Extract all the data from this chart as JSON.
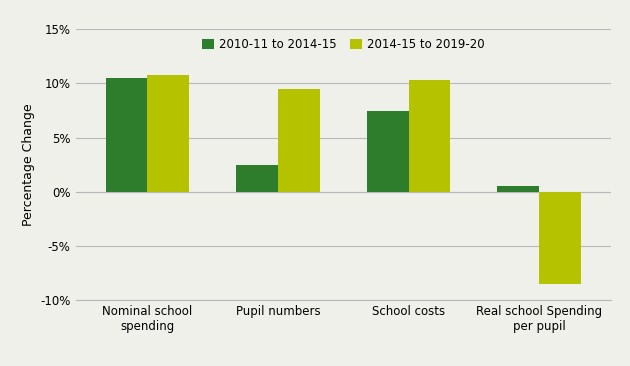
{
  "categories": [
    "Nominal school\nspending",
    "Pupil numbers",
    "School costs",
    "Real school Spending\nper pupil"
  ],
  "series": [
    {
      "label": "2010-11 to 2014-15",
      "values": [
        10.5,
        2.5,
        7.5,
        0.5
      ],
      "color": "#2d7d2d"
    },
    {
      "label": "2014-15 to 2019-20",
      "values": [
        10.8,
        9.5,
        10.3,
        -8.5
      ],
      "color": "#b5c200"
    }
  ],
  "ylabel": "Percentage Change",
  "ylim": [
    -10,
    15
  ],
  "yticks": [
    -10,
    -5,
    0,
    5,
    10,
    15
  ],
  "background_color": "#f0f0eb",
  "grid_color": "#b8b8b8",
  "bar_width": 0.32,
  "axis_fontsize": 9,
  "tick_fontsize": 8.5,
  "legend_fontsize": 8.5
}
